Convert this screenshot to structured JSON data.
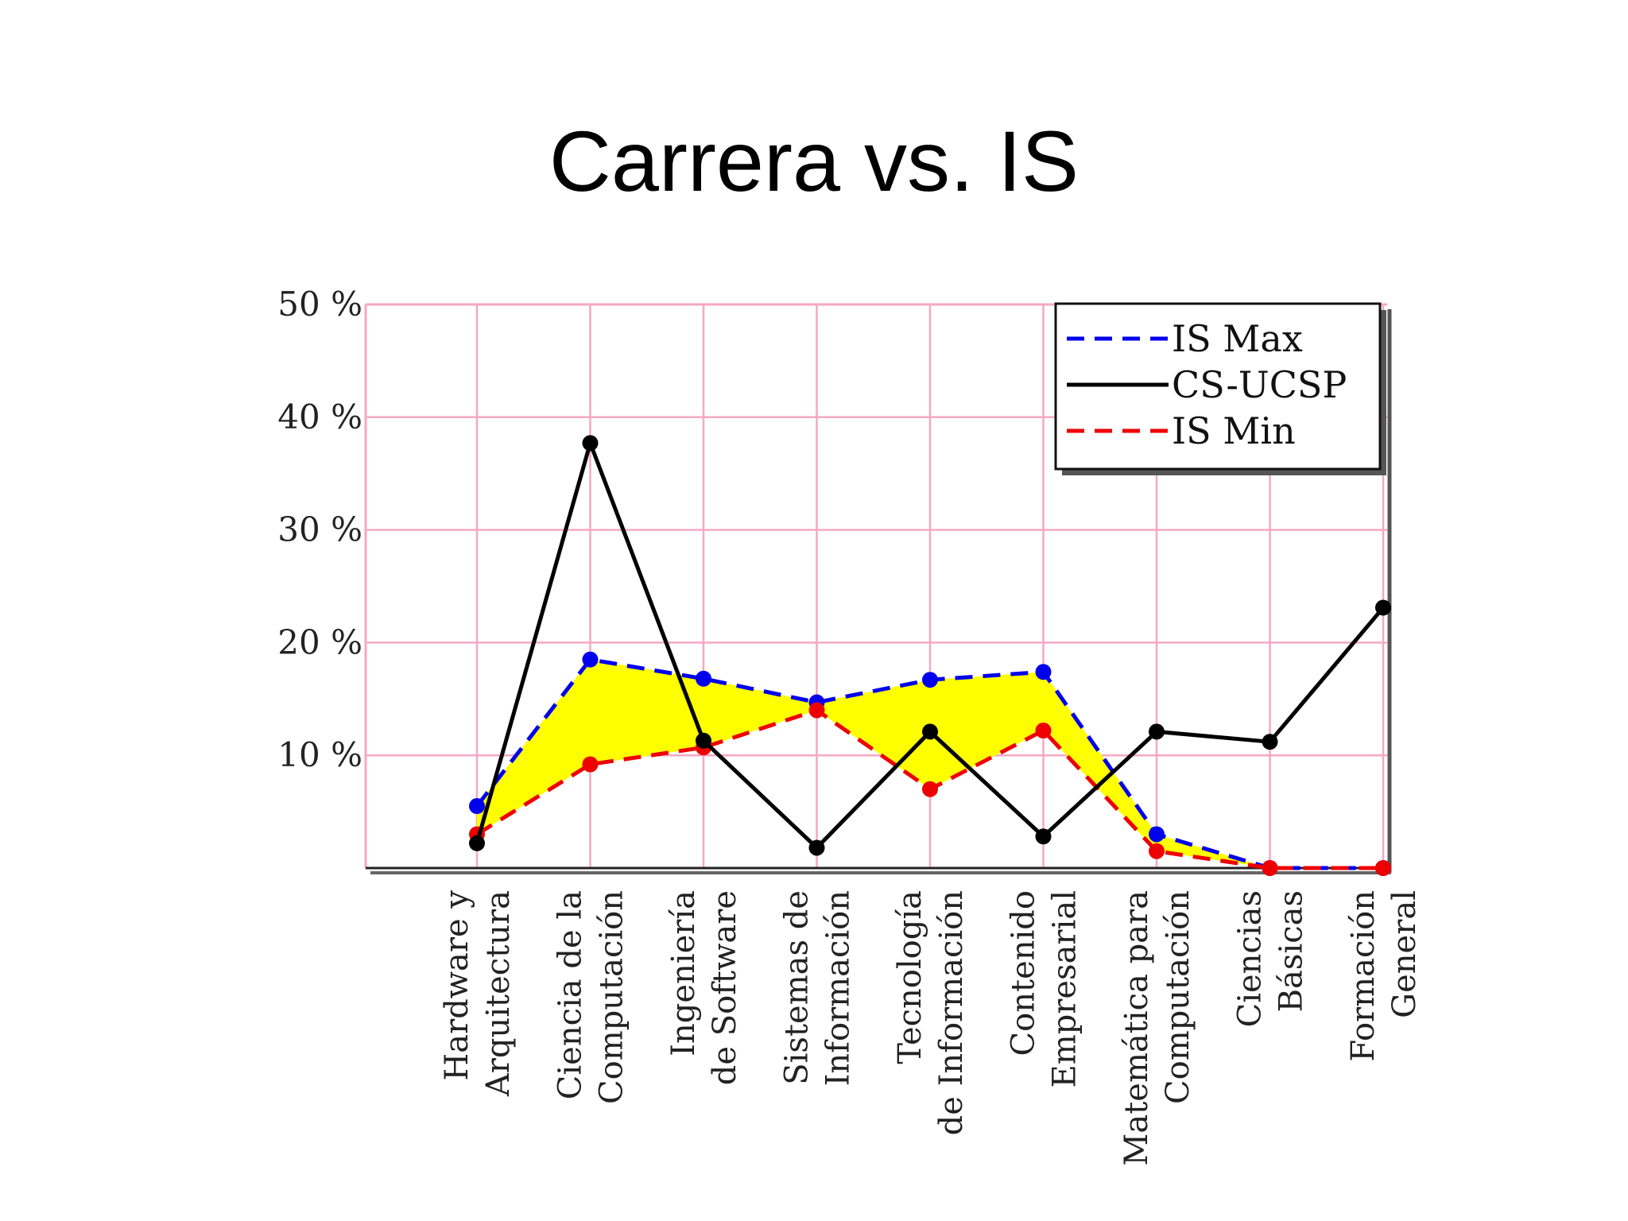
{
  "slide": {
    "title": "Carrera vs. IS"
  },
  "chart_data": {
    "type": "line",
    "title": "",
    "xlabel": "",
    "ylabel": "",
    "ylim": [
      0,
      50
    ],
    "yticks": [
      10,
      20,
      30,
      40,
      50
    ],
    "ytick_labels": [
      "10 %",
      "20 %",
      "30 %",
      "40 %",
      "50 %"
    ],
    "grid": true,
    "legend_position": "top-right",
    "categories": [
      [
        "Hardware y",
        "Arquitectura"
      ],
      [
        "Ciencia de la",
        "Computación"
      ],
      [
        "Ingeniería",
        "de Software"
      ],
      [
        "Sistemas de",
        "Información"
      ],
      [
        "Tecnología",
        "de Información"
      ],
      [
        "Contenido",
        "Empresarial"
      ],
      [
        "Matemática para",
        "Computación"
      ],
      [
        "Ciencias",
        "Básicas"
      ],
      [
        "Formación",
        "General"
      ]
    ],
    "band": {
      "between": [
        "IS Max",
        "IS Min"
      ],
      "color": "#ffff00"
    },
    "series": [
      {
        "name": "IS Max",
        "style": "dashed",
        "color": "#0000ee",
        "values": [
          5.5,
          18.5,
          16.8,
          14.7,
          16.7,
          17.4,
          3,
          0,
          0
        ]
      },
      {
        "name": "CS-UCSP",
        "style": "solid",
        "color": "#000000",
        "values": [
          2.2,
          37.7,
          11.3,
          1.8,
          12.1,
          2.8,
          12.1,
          11.2,
          23.1
        ]
      },
      {
        "name": "IS Min",
        "style": "dashed",
        "color": "#ee0000",
        "values": [
          3,
          9.2,
          10.7,
          14,
          7,
          12.2,
          1.5,
          0,
          0
        ]
      }
    ]
  }
}
